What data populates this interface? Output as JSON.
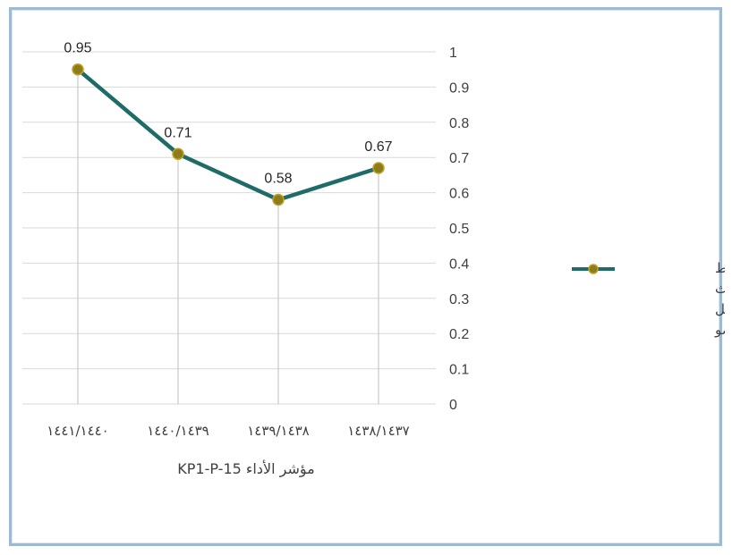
{
  "chart_data": {
    "type": "line",
    "categories": [
      "١٤٤١/١٤٤٠",
      "١٤٤٠/١٤٣٩",
      "١٤٣٩/١٤٣٨",
      "١٤٣٨/١٤٣٧"
    ],
    "series": [
      {
        "name": "متوسط البحوث المنشورة لكل عضو",
        "values": [
          0.95,
          0.71,
          0.58,
          0.67
        ],
        "value_labels": [
          "0.95",
          "0.71",
          "0.58",
          "0.67"
        ]
      }
    ],
    "xlabel": "مؤشر الأداء KP1-P-15",
    "ylabel": "",
    "ylim": [
      0,
      1
    ],
    "yticks": [
      "0",
      "0.1",
      "0.2",
      "0.3",
      "0.4",
      "0.5",
      "0.6",
      "0.7",
      "0.8",
      "0.9",
      "1"
    ],
    "y_axis_side": "right",
    "grid": true,
    "legend_position": "right",
    "legend_lines": [
      "متوسط",
      "البحوث",
      "المنشورة لكل",
      "عضو"
    ],
    "colors": {
      "line": "#1f6b67",
      "marker_fill": "#8b7d1e",
      "marker_stroke": "#c4a020",
      "frame_border": "#9dbad1"
    }
  }
}
